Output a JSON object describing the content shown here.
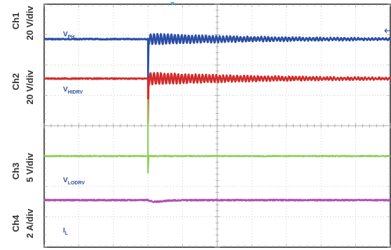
{
  "chart_data": {
    "type": "line",
    "title": "",
    "grid": true,
    "grid_divisions": {
      "x": 10,
      "y": 8
    },
    "channels": [
      {
        "id": "ch1",
        "channel": "Ch1",
        "scale": "20 V/div",
        "signal": "V",
        "signal_sub": "PH",
        "color": "#2a4ea6",
        "baseline_div": 1.15,
        "event": {
          "spike_div": -1.35,
          "ringing_amplitude_div": 0.18,
          "ringing_period_div": 0.1
        }
      },
      {
        "id": "ch2",
        "channel": "Ch2",
        "scale": "20 V/div",
        "signal": "V",
        "signal_sub": "HIDRV",
        "color": "#d42b2b",
        "baseline_div": 2.45,
        "event": {
          "spike_div": -1.45,
          "ringing_amplitude_div": 0.2,
          "ringing_period_div": 0.1
        }
      },
      {
        "id": "ch3",
        "channel": "Ch3",
        "scale": "5 V/div",
        "signal": "V",
        "signal_sub": "LODRV",
        "color": "#8ecf5a",
        "baseline_div": 5.0,
        "event": {
          "spike_div": 1.85,
          "dip_div": -0.55,
          "ringing_amplitude_div": 0,
          "ringing_period_div": 0.1
        }
      },
      {
        "id": "ch4",
        "channel": "Ch4",
        "scale": "2 A/div",
        "signal": "I",
        "signal_sub": "L",
        "color": "#b34fb8",
        "baseline_div": 6.45,
        "event": {
          "spike_div": -0.18,
          "ringing_amplitude_div": 0,
          "ringing_period_div": 0.1
        }
      }
    ],
    "event_time_div": 3.0,
    "ringing_decay_div": 3.5
  }
}
